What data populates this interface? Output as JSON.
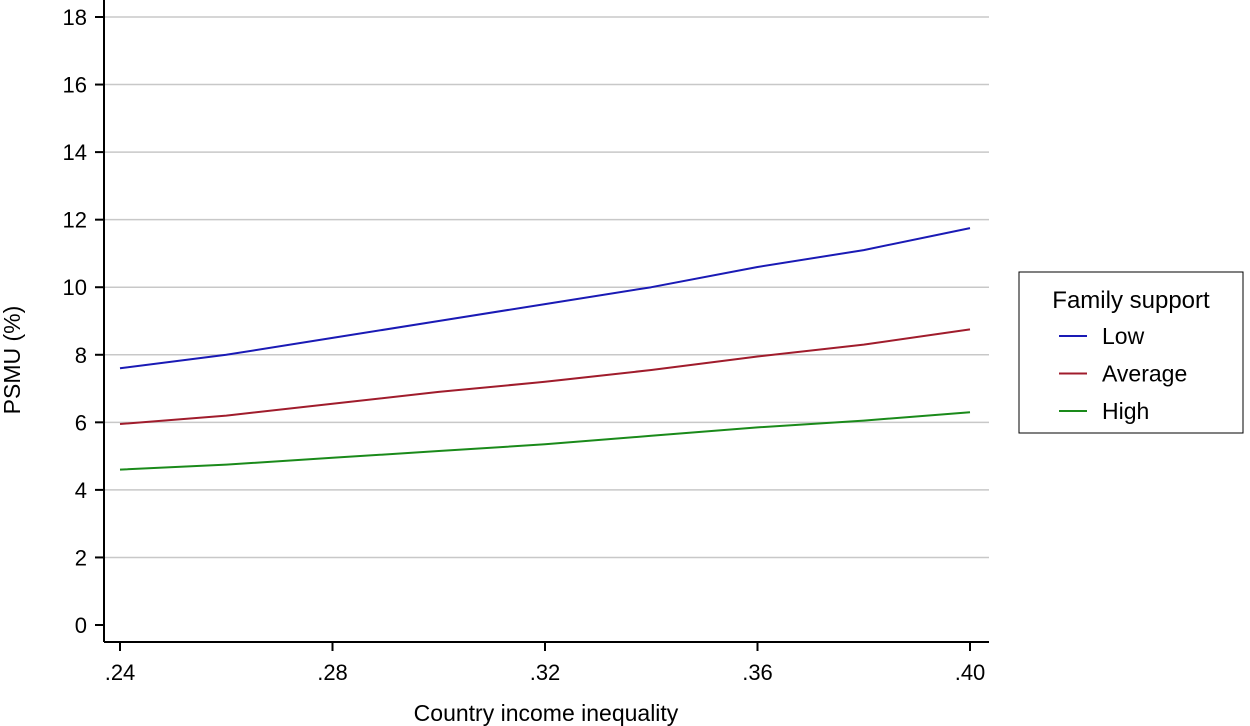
{
  "chart_data": {
    "type": "line",
    "title": "",
    "xlabel": "Country income inequality",
    "ylabel": "PSMU (%)",
    "xlim": [
      0.24,
      0.4
    ],
    "ylim": [
      0,
      18
    ],
    "grid": true,
    "x_ticks": [
      {
        "value": 0.24,
        "label": ".24"
      },
      {
        "value": 0.28,
        "label": ".28"
      },
      {
        "value": 0.32,
        "label": ".32"
      },
      {
        "value": 0.36,
        "label": ".36"
      },
      {
        "value": 0.4,
        "label": ".40"
      }
    ],
    "y_ticks": [
      {
        "value": 0,
        "label": "0"
      },
      {
        "value": 2,
        "label": "2"
      },
      {
        "value": 4,
        "label": "4"
      },
      {
        "value": 6,
        "label": "6"
      },
      {
        "value": 8,
        "label": "8"
      },
      {
        "value": 10,
        "label": "10"
      },
      {
        "value": 12,
        "label": "12"
      },
      {
        "value": 14,
        "label": "14"
      },
      {
        "value": 16,
        "label": "16"
      },
      {
        "value": 18,
        "label": "18"
      }
    ],
    "x": [
      0.24,
      0.26,
      0.28,
      0.3,
      0.32,
      0.34,
      0.36,
      0.38,
      0.4
    ],
    "series": [
      {
        "name": "Low",
        "color": "#1a1ab5",
        "values": [
          7.6,
          8.0,
          8.5,
          9.0,
          9.5,
          10.0,
          10.6,
          11.1,
          11.75
        ]
      },
      {
        "name": "Average",
        "color": "#a01c2c",
        "values": [
          5.95,
          6.2,
          6.55,
          6.9,
          7.2,
          7.55,
          7.95,
          8.3,
          8.75
        ]
      },
      {
        "name": "High",
        "color": "#1a8a1a",
        "values": [
          4.6,
          4.75,
          4.95,
          5.15,
          5.35,
          5.6,
          5.85,
          6.05,
          6.3
        ]
      }
    ],
    "legend": {
      "title": "Family support",
      "placement": "right"
    }
  }
}
